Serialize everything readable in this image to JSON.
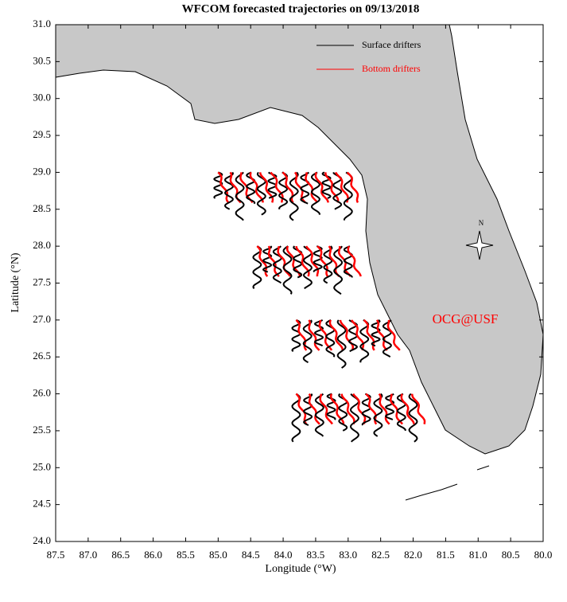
{
  "chart_data": {
    "type": "trajectory-map",
    "title": "WFCOM forecasted trajectories on 09/13/2018",
    "x_label": "Longitude (°W)",
    "y_label": "Latitude (°N)",
    "xlim": [
      87.5,
      80.0
    ],
    "ylim": [
      24.0,
      31.0
    ],
    "xticks": [
      87.5,
      {
        "value": 87.0,
        "label": "87.0"
      },
      86.5,
      {
        "value": 86.0,
        "label": "86.0"
      },
      85.5,
      {
        "value": 85.0,
        "label": "85.0"
      },
      84.5,
      {
        "value": 84.0,
        "label": "84.0"
      },
      83.5,
      {
        "value": 83.0,
        "label": "83.0"
      },
      82.5,
      {
        "value": 82.0,
        "label": "82.0"
      },
      81.5,
      {
        "value": 81.0,
        "label": "81.0"
      },
      80.5,
      {
        "value": 80.0,
        "label": "80.0"
      }
    ],
    "yticks": [
      {
        "value": 24.0,
        "label": "24.0"
      },
      24.5,
      {
        "value": 25.0,
        "label": "25.0"
      },
      25.5,
      {
        "value": 26.0,
        "label": "26.0"
      },
      26.5,
      {
        "value": 27.0,
        "label": "27.0"
      },
      27.5,
      {
        "value": 28.0,
        "label": "28.0"
      },
      28.5,
      {
        "value": 29.0,
        "label": "29.0"
      },
      29.5,
      {
        "value": 30.0,
        "label": "30.0"
      },
      30.5,
      {
        "value": 31.0,
        "label": "31.0"
      }
    ],
    "legend": [
      {
        "label": "Surface drifters",
        "color": "#000000"
      },
      {
        "label": "Bottom drifters",
        "color": "#ff0000"
      }
    ],
    "annotation": "OCG@USF",
    "compass": "N"
  }
}
